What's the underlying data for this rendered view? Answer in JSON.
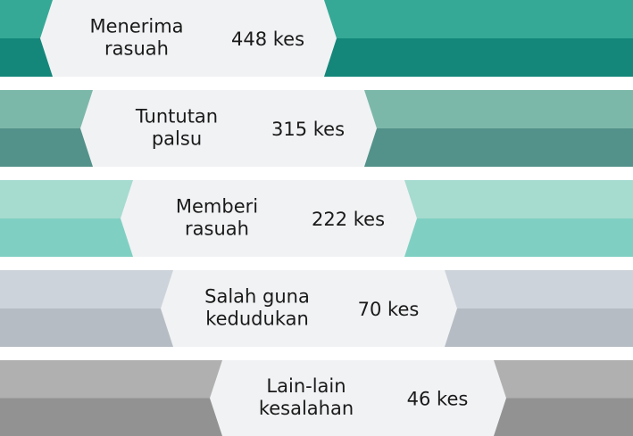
{
  "rows": [
    {
      "label": [
        "Menerima",
        "rasuah"
      ],
      "value": "448 kes"
    },
    {
      "label": [
        "Tuntutan",
        "palsu"
      ],
      "value": "315 kes"
    },
    {
      "label": [
        "Memberi",
        "rasuah"
      ],
      "value": "222 kes"
    },
    {
      "label": [
        "Salah guna",
        "kedudukan"
      ],
      "value": "70 kes"
    },
    {
      "label": [
        "Lain-lain",
        "kesalahan"
      ],
      "value": "46 kes"
    }
  ]
}
